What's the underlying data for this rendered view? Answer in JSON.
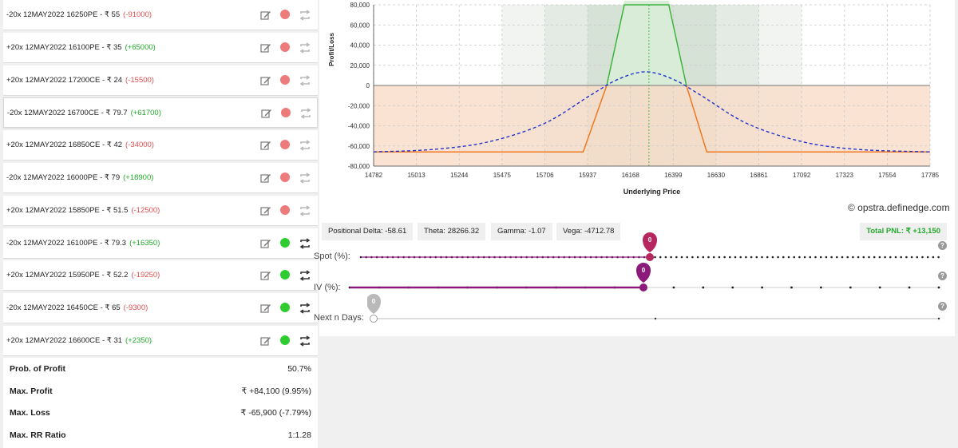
{
  "legs": [
    {
      "text": "-20x 12MAY2022 16250PE - ₹ 55",
      "pnl": "(-91000)",
      "pnl_sign": "neg",
      "status": "red"
    },
    {
      "text": "+20x 12MAY2022 16100PE - ₹ 35",
      "pnl": "(+65000)",
      "pnl_sign": "pos",
      "status": "red"
    },
    {
      "text": "+20x 12MAY2022 17200CE - ₹ 24",
      "pnl": "(-15500)",
      "pnl_sign": "neg",
      "status": "red"
    },
    {
      "text": "-20x 12MAY2022 16700CE - ₹ 79.7",
      "pnl": "(+61700)",
      "pnl_sign": "pos",
      "status": "red"
    },
    {
      "text": "+20x 12MAY2022 16850CE - ₹ 42",
      "pnl": "(-34000)",
      "pnl_sign": "neg",
      "status": "red"
    },
    {
      "text": "-20x 12MAY2022 16000PE - ₹ 79",
      "pnl": "(+18900)",
      "pnl_sign": "pos",
      "status": "red"
    },
    {
      "text": "+20x 12MAY2022 15850PE - ₹ 51.5",
      "pnl": "(-12500)",
      "pnl_sign": "neg",
      "status": "red"
    },
    {
      "text": "-20x 12MAY2022 16100PE - ₹ 79.3",
      "pnl": "(+16350)",
      "pnl_sign": "pos",
      "status": "green"
    },
    {
      "text": "+20x 12MAY2022 15950PE - ₹ 52.2",
      "pnl": "(-19250)",
      "pnl_sign": "neg",
      "status": "green"
    },
    {
      "text": "-20x 12MAY2022 16450CE - ₹ 65",
      "pnl": "(-9300)",
      "pnl_sign": "neg",
      "status": "green"
    },
    {
      "text": "+20x 12MAY2022 16600CE - ₹ 31",
      "pnl": "(+2350)",
      "pnl_sign": "pos",
      "status": "green"
    }
  ],
  "stats": [
    {
      "label": "Prob. of Profit",
      "value": "50.7%"
    },
    {
      "label": "Max. Profit",
      "value": "₹ +84,100 (9.95%)"
    },
    {
      "label": "Max. Loss",
      "value": "₹ -65,900 (-7.79%)"
    },
    {
      "label": "Max. RR Ratio",
      "value": "1:1.28"
    }
  ],
  "greeks": {
    "delta": "Positional Delta: -58.61",
    "theta": "Theta: 28266.32",
    "gamma": "Gamma: -1.07",
    "vega": "Vega: -4712.78",
    "total_pnl": "Total PNL: ₹ +13,150"
  },
  "credit": "© opstra.definedge.com",
  "sliders": {
    "spot": {
      "label": "Spot (%):",
      "value": "0"
    },
    "iv": {
      "label": "IV (%):",
      "value": "0"
    },
    "days": {
      "label": "Next n Days:",
      "value": "0"
    }
  },
  "help_glyph": "?",
  "colors": {
    "profit_line": "#3cb43c",
    "loss_line": "#f07820",
    "target_line": "#2233cc",
    "loss_fill": "#f9dcc8",
    "profit_fill": "#d8ecd8",
    "spot_line": "#3cb43c",
    "slider_active": "#8b1a7a",
    "slider_thumb_spot": "#b5275e",
    "slider_thumb_iv": "#8b1a7a"
  },
  "chart_data": {
    "type": "line",
    "xlabel": "Underlying Price",
    "ylabel": "Profit/Loss",
    "ylim": [
      -80000,
      85000
    ],
    "xlim": [
      14782,
      17785
    ],
    "x_ticks": [
      "14782",
      "15013",
      "15244",
      "15475",
      "15706",
      "15937",
      "16168",
      "16399",
      "16630",
      "16861",
      "17092",
      "17323",
      "17554",
      "17785"
    ],
    "y_ticks": [
      "80,000",
      "60,000",
      "40,000",
      "20,000",
      "0",
      "-20,000",
      "-40,000",
      "-60,000",
      "-80,000"
    ],
    "y_tick_values": [
      80000,
      60000,
      40000,
      20000,
      0,
      -20000,
      -40000,
      -60000,
      -80000
    ],
    "spot_price": 16268,
    "bands": [
      {
        "from": 15475,
        "to": 17092,
        "shade": "light"
      },
      {
        "from": 15706,
        "to": 16861,
        "shade": "mid"
      },
      {
        "from": 15937,
        "to": 16630,
        "shade": "dark"
      }
    ],
    "expiry_payoff": [
      [
        14782,
        -65900
      ],
      [
        15913,
        -65900
      ],
      [
        16040,
        0
      ],
      [
        16135,
        84100
      ],
      [
        16375,
        84100
      ],
      [
        16470,
        0
      ],
      [
        16580,
        -65900
      ],
      [
        17785,
        -65900
      ]
    ],
    "target_payoff": [
      [
        14782,
        -65900
      ],
      [
        15100,
        -63500
      ],
      [
        15400,
        -56000
      ],
      [
        15700,
        -38000
      ],
      [
        15950,
        -10000
      ],
      [
        16100,
        6000
      ],
      [
        16250,
        13500
      ],
      [
        16400,
        6000
      ],
      [
        16550,
        -10000
      ],
      [
        16800,
        -38000
      ],
      [
        17100,
        -56000
      ],
      [
        17400,
        -63500
      ],
      [
        17785,
        -65900
      ]
    ],
    "grid": true
  }
}
